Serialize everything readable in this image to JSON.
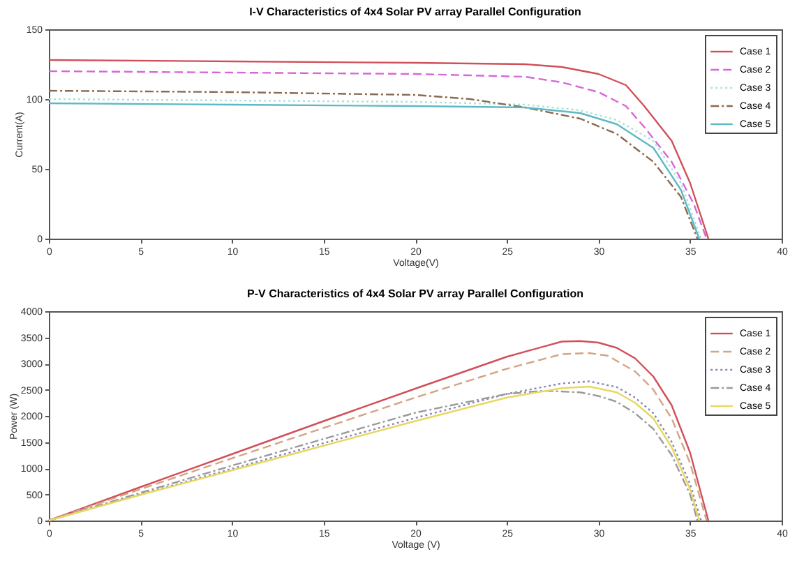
{
  "chart_data": [
    {
      "type": "line",
      "title": "I-V Characteristics of 4x4 Solar PV array Parallel Configuration",
      "xlabel": "Voltage(V)",
      "ylabel": "Current(A)",
      "xlim": [
        0,
        40
      ],
      "xticks": [
        0,
        5,
        10,
        15,
        20,
        25,
        30,
        35,
        40
      ],
      "ylim": [
        0,
        150
      ],
      "yticks": [
        0,
        50,
        100,
        150
      ],
      "legend": "top right",
      "grid": false,
      "marker": "none",
      "series": [
        {
          "name": "Case 1",
          "color": "#d0505a",
          "line_style": "solid",
          "x": [
            0,
            10,
            20,
            26,
            28,
            30,
            31.5,
            32.5,
            34,
            35,
            36
          ],
          "values": [
            128,
            127,
            126,
            125,
            123,
            118,
            110,
            95,
            70,
            40,
            0
          ]
        },
        {
          "name": "Case 2",
          "color": "#d866d8",
          "line_style": "dashed",
          "x": [
            0,
            10,
            20,
            26,
            28,
            30,
            31.5,
            32.5,
            34,
            35.2,
            35.9
          ],
          "values": [
            120,
            119,
            118,
            116,
            112,
            105,
            95,
            80,
            55,
            25,
            0
          ]
        },
        {
          "name": "Case 3",
          "color": "#a8e4dc",
          "line_style": "dotted",
          "x": [
            0,
            10,
            20,
            26,
            29,
            31,
            33,
            34.5,
            35.6
          ],
          "values": [
            100,
            99,
            98,
            96,
            92,
            85,
            70,
            40,
            0
          ]
        },
        {
          "name": "Case 4",
          "color": "#8a6a50",
          "line_style": "dashdot",
          "x": [
            0,
            10,
            20,
            23,
            26,
            29,
            31,
            33,
            34.5,
            35.4
          ],
          "values": [
            106,
            105,
            103,
            100,
            94,
            86,
            75,
            55,
            30,
            0
          ]
        },
        {
          "name": "Case 5",
          "color": "#5fb8c4",
          "line_style": "solid",
          "x": [
            0,
            10,
            20,
            26,
            29,
            31,
            33,
            34.5,
            35.5
          ],
          "values": [
            97,
            96,
            95,
            94,
            90,
            82,
            65,
            35,
            0
          ]
        }
      ]
    },
    {
      "type": "line",
      "title": "P-V Characteristics of 4x4 Solar PV array Parallel Configuration",
      "xlabel": "Voltage (V)",
      "ylabel": "Power (W)",
      "xlim": [
        0,
        40
      ],
      "xticks": [
        0,
        5,
        10,
        15,
        20,
        25,
        30,
        35,
        40
      ],
      "ylim": [
        0,
        4000
      ],
      "yticks": [
        0,
        500,
        1000,
        1500,
        2000,
        2500,
        3000,
        3500,
        4000
      ],
      "legend": "top right",
      "grid": false,
      "marker": "none",
      "series": [
        {
          "name": "Case 1",
          "color": "#d0505a",
          "line_style": "solid",
          "x": [
            0,
            5,
            10,
            15,
            20,
            25,
            28,
            29,
            30,
            31,
            32,
            33,
            34,
            35,
            36
          ],
          "values": [
            0,
            640,
            1270,
            1900,
            2520,
            3130,
            3420,
            3430,
            3400,
            3300,
            3100,
            2750,
            2200,
            1300,
            0
          ]
        },
        {
          "name": "Case 2",
          "color": "#d4a484",
          "line_style": "dashed",
          "x": [
            0,
            5,
            10,
            15,
            20,
            25,
            28,
            29.5,
            30.5,
            32,
            33,
            34,
            35,
            35.9
          ],
          "values": [
            0,
            600,
            1190,
            1770,
            2350,
            2900,
            3180,
            3200,
            3150,
            2850,
            2500,
            1950,
            1100,
            0
          ]
        },
        {
          "name": "Case 3",
          "color": "#8888b8",
          "line_style": "dotted",
          "x": [
            0,
            5,
            10,
            15,
            20,
            25,
            28,
            29.5,
            31,
            32,
            33,
            34,
            35,
            35.6
          ],
          "values": [
            0,
            500,
            990,
            1480,
            1960,
            2420,
            2620,
            2660,
            2550,
            2350,
            2050,
            1500,
            700,
            0
          ]
        },
        {
          "name": "Case 4",
          "color": "#9a9a9a",
          "line_style": "dashdot",
          "x": [
            0,
            5,
            10,
            15,
            20,
            25,
            27,
            29,
            30,
            31,
            32,
            33,
            34,
            35,
            35.4
          ],
          "values": [
            0,
            530,
            1050,
            1560,
            2060,
            2420,
            2480,
            2450,
            2380,
            2270,
            2050,
            1750,
            1250,
            500,
            0
          ]
        },
        {
          "name": "Case 5",
          "color": "#e8d860",
          "line_style": "solid",
          "x": [
            0,
            5,
            10,
            15,
            20,
            25,
            28,
            29.5,
            31,
            32,
            33,
            34,
            35,
            35.5
          ],
          "values": [
            0,
            490,
            960,
            1430,
            1900,
            2350,
            2530,
            2560,
            2450,
            2250,
            1950,
            1400,
            600,
            0
          ]
        }
      ]
    }
  ]
}
